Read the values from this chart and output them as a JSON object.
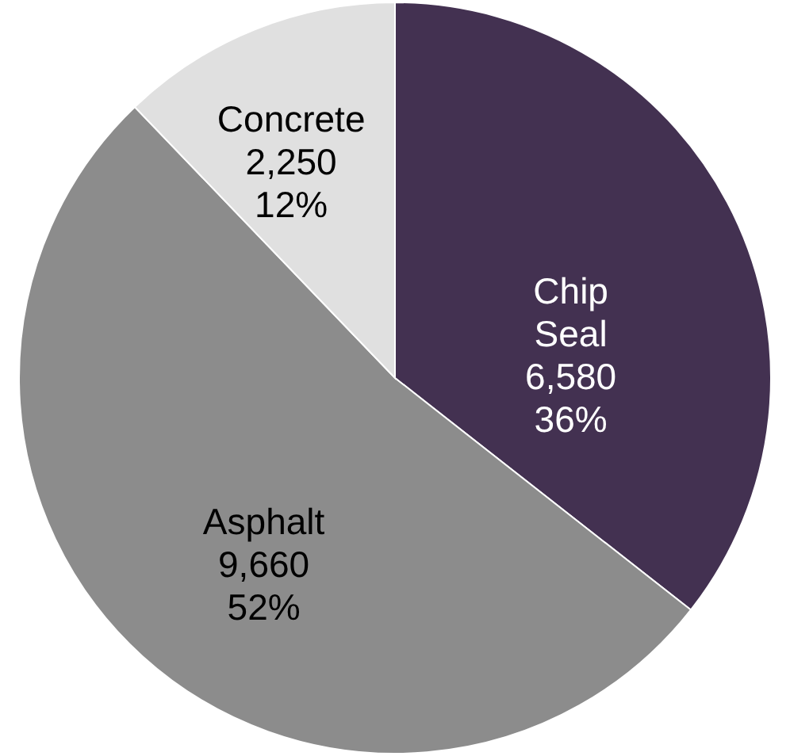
{
  "chart_data": {
    "type": "pie",
    "categories": [
      "Chip Seal",
      "Asphalt",
      "Concrete"
    ],
    "values": [
      6580,
      9660,
      2250
    ],
    "colors": [
      "#433151",
      "#8c8c8c",
      "#e0e0e0"
    ],
    "value_labels": [
      "6,580\n36%",
      "9,660\n52%",
      "2,250\n12%"
    ]
  }
}
